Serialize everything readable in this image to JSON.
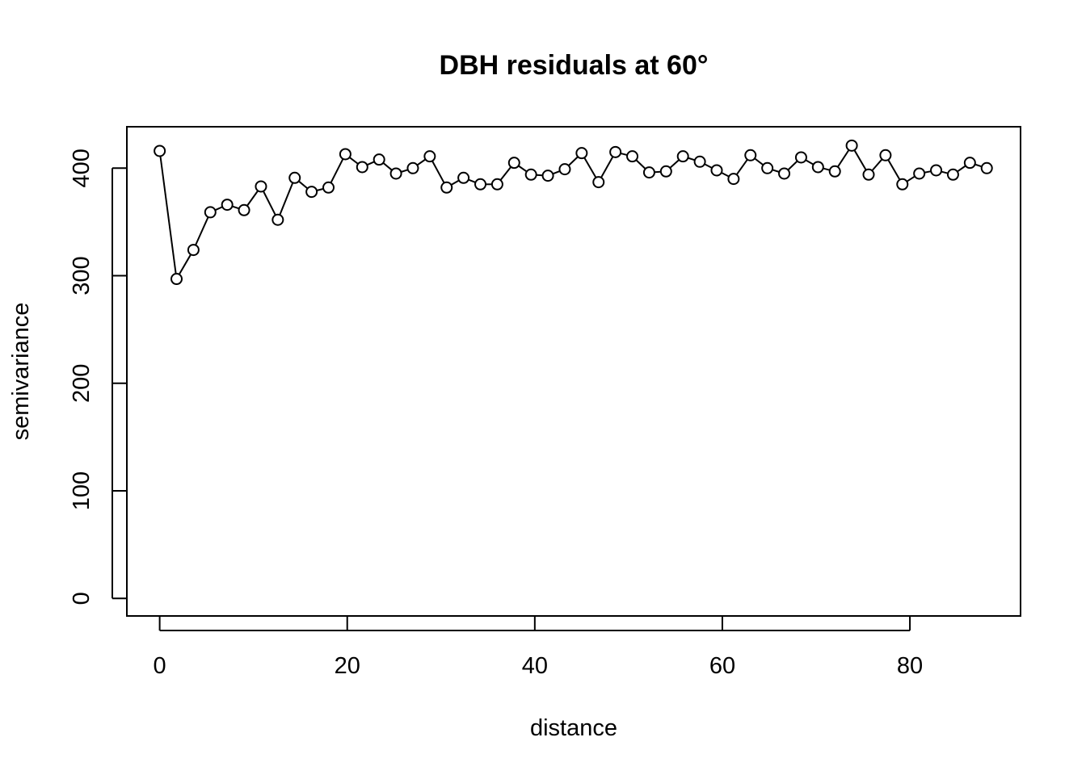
{
  "chart_data": {
    "type": "line",
    "title": "DBH residuals at 60°",
    "xlabel": "distance",
    "ylabel": "semivariance",
    "xlim": [
      -3.5,
      91.8
    ],
    "ylim": [
      -16.3,
      438.5
    ],
    "x_ticks": [
      0,
      20,
      40,
      60,
      80
    ],
    "y_ticks": [
      0,
      100,
      200,
      300,
      400
    ],
    "grid": false,
    "legend": "none",
    "marker": "open-circle",
    "series": [
      {
        "x": [
          0,
          1.8,
          3.6,
          5.4,
          7.2,
          9.0,
          10.8,
          12.6,
          14.4,
          16.2,
          18.0,
          19.8,
          21.6,
          23.4,
          25.2,
          27.0,
          28.8,
          30.6,
          32.4,
          34.2,
          36.0,
          37.8,
          39.6,
          41.4,
          43.2,
          45.0,
          46.8,
          48.6,
          50.4,
          52.2,
          54.0,
          55.8,
          57.6,
          59.4,
          61.2,
          63.0,
          64.8,
          66.6,
          68.4,
          70.2,
          72.0,
          73.8,
          75.6,
          77.4,
          79.2,
          81.0,
          82.8,
          84.6,
          86.4,
          88.2
        ],
        "y": [
          416,
          297,
          324,
          359,
          366,
          361,
          383,
          352,
          391,
          378,
          382,
          413,
          401,
          408,
          395,
          400,
          411,
          382,
          391,
          385,
          385,
          405,
          394,
          393,
          399,
          414,
          387,
          415,
          411,
          396,
          397,
          411,
          406,
          398,
          390,
          412,
          400,
          395,
          410,
          401,
          397,
          421,
          394,
          412,
          385,
          395,
          398,
          394,
          405,
          400
        ]
      }
    ]
  }
}
